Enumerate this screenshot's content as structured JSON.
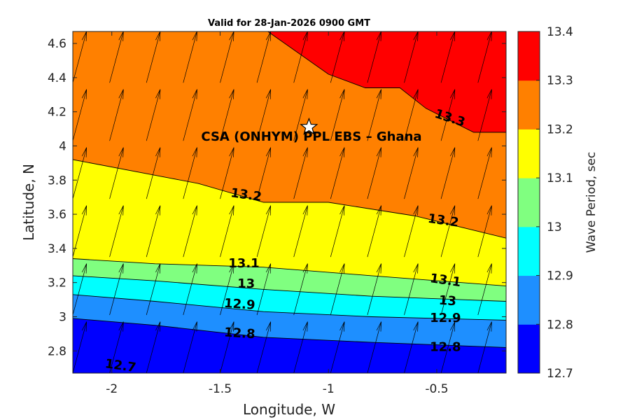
{
  "chart_data": {
    "type": "contour",
    "title": "Valid for 28-Jan-2026 0900 GMT",
    "xlabel": "Longitude, W",
    "ylabel": "Latitude, N",
    "xlim": [
      -2.18,
      -0.18
    ],
    "ylim": [
      2.67,
      4.67
    ],
    "xticks": [
      -2,
      -1.5,
      -1,
      -0.5
    ],
    "xtick_labels": [
      "-2",
      "-1.5",
      "-1",
      "-0.5"
    ],
    "yticks": [
      2.8,
      3.0,
      3.2,
      3.4,
      3.6,
      3.8,
      4.0,
      4.2,
      4.4,
      4.6
    ],
    "ytick_labels": [
      "2.8",
      "3",
      "3.2",
      "3.4",
      "3.6",
      "3.8",
      "4",
      "4.2",
      "4.4",
      "4.6"
    ],
    "colorbar": {
      "label": "Wave Period, sec",
      "levels": [
        12.7,
        12.8,
        12.9,
        13.0,
        13.1,
        13.2,
        13.3,
        13.4
      ],
      "level_labels": [
        "12.7",
        "12.8",
        "12.9",
        "13",
        "13.1",
        "13.2",
        "13.3",
        "13.4"
      ],
      "colors": [
        "#0000ff",
        "#1e8fff",
        "#00ffff",
        "#80ff80",
        "#ffff00",
        "#ff8000",
        "#ff0000"
      ]
    },
    "contours": [
      {
        "level": 12.8,
        "label": "12.8",
        "points": [
          [
            -2.18,
            2.99
          ],
          [
            -1.8,
            2.95
          ],
          [
            -1.3,
            2.88
          ],
          [
            -0.8,
            2.85
          ],
          [
            -0.18,
            2.82
          ]
        ]
      },
      {
        "level": 12.9,
        "label": "12.9",
        "points": [
          [
            -2.18,
            3.13
          ],
          [
            -1.8,
            3.09
          ],
          [
            -1.3,
            3.03
          ],
          [
            -0.8,
            3.0
          ],
          [
            -0.18,
            2.98
          ]
        ]
      },
      {
        "level": 13.0,
        "label": "13",
        "points": [
          [
            -2.18,
            3.24
          ],
          [
            -1.8,
            3.21
          ],
          [
            -1.3,
            3.16
          ],
          [
            -0.8,
            3.12
          ],
          [
            -0.18,
            3.09
          ]
        ]
      },
      {
        "level": 13.1,
        "label": "13.1",
        "points": [
          [
            -2.18,
            3.34
          ],
          [
            -1.8,
            3.31
          ],
          [
            -1.3,
            3.29
          ],
          [
            -0.8,
            3.24
          ],
          [
            -0.18,
            3.18
          ]
        ]
      },
      {
        "level": 13.2,
        "label": "13.2",
        "points": [
          [
            -2.18,
            3.92
          ],
          [
            -1.6,
            3.78
          ],
          [
            -1.3,
            3.67
          ],
          [
            -1.0,
            3.67
          ],
          [
            -0.6,
            3.59
          ],
          [
            -0.18,
            3.46
          ]
        ]
      },
      {
        "level": 13.3,
        "label": "13.3",
        "points": [
          [
            -1.28,
            4.67
          ],
          [
            -1.0,
            4.42
          ],
          [
            -0.83,
            4.34
          ],
          [
            -0.67,
            4.34
          ],
          [
            -0.55,
            4.22
          ],
          [
            -0.33,
            4.08
          ],
          [
            -0.18,
            4.08
          ]
        ]
      }
    ],
    "contour_labels": [
      {
        "text": "13.3",
        "lon": -0.44,
        "lat": 4.16,
        "angle": 18
      },
      {
        "text": "13.2",
        "lon": -1.38,
        "lat": 3.71,
        "angle": 8
      },
      {
        "text": "13.2",
        "lon": -0.47,
        "lat": 3.56,
        "angle": 8
      },
      {
        "text": "13.1",
        "lon": -1.39,
        "lat": 3.31,
        "angle": 0
      },
      {
        "text": "13.1",
        "lon": -0.46,
        "lat": 3.21,
        "angle": 8
      },
      {
        "text": "13",
        "lon": -1.38,
        "lat": 3.19,
        "angle": 0
      },
      {
        "text": "13",
        "lon": -0.45,
        "lat": 3.09,
        "angle": 4
      },
      {
        "text": "12.9",
        "lon": -1.41,
        "lat": 3.07,
        "angle": 4
      },
      {
        "text": "12.9",
        "lon": -0.46,
        "lat": 2.99,
        "angle": 0
      },
      {
        "text": "12.8",
        "lon": -1.41,
        "lat": 2.9,
        "angle": 4
      },
      {
        "text": "12.8",
        "lon": -0.46,
        "lat": 2.82,
        "angle": 0
      },
      {
        "text": "12.7",
        "lon": -1.96,
        "lat": 2.71,
        "angle": 8
      }
    ],
    "site": {
      "name": "CSA (ONHYM) PPL EBS  – Ghana",
      "lon": -1.09,
      "lat": 4.11
    },
    "direction_arrows": {
      "lon_start": -2.18,
      "lon_step": 0.17,
      "lat_start": 2.67,
      "lat_step": 0.34,
      "heading_deg": 15
    }
  }
}
